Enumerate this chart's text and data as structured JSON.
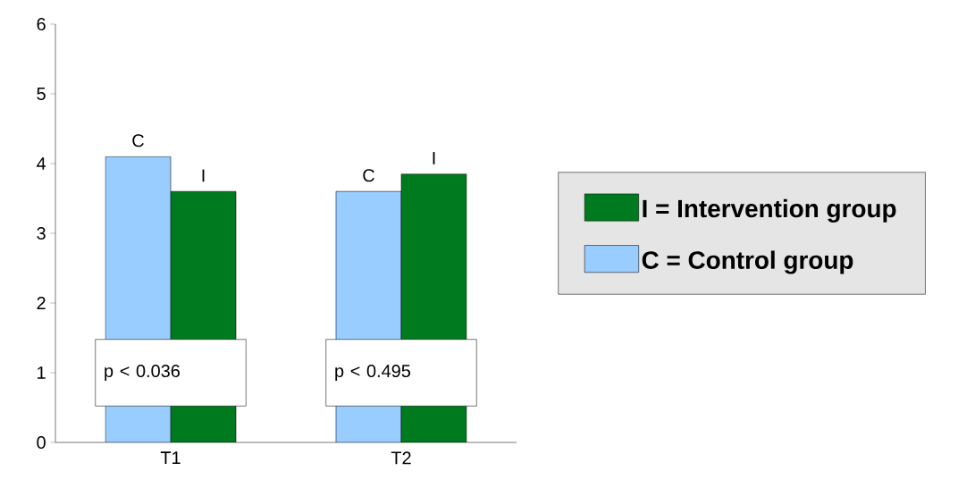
{
  "chart_data": {
    "type": "bar",
    "categories": [
      "T1",
      "T2"
    ],
    "series": [
      {
        "name": "C = Control group",
        "color": "#99ccff",
        "values": [
          4.1,
          3.6
        ]
      },
      {
        "name": "I = Intervention group",
        "color": "#007a1e",
        "values": [
          3.6,
          3.85
        ]
      }
    ],
    "ylim": [
      0,
      6
    ],
    "yticks": [
      0,
      1,
      2,
      3,
      4,
      5,
      6
    ],
    "grid": false,
    "legend": "right",
    "annotations": [
      {
        "text": "C",
        "x": "T1",
        "y": 4.1
      },
      {
        "text": "I",
        "x": "T1",
        "y": 3.6
      },
      {
        "text": "C",
        "x": "T2",
        "y": 3.6
      },
      {
        "text": "I",
        "x": "T2",
        "y": 3.85
      },
      {
        "text": "p < 0.036",
        "x": "T1",
        "y": 1
      },
      {
        "text": "p < 0.495",
        "x": "T2",
        "y": 1
      }
    ]
  }
}
